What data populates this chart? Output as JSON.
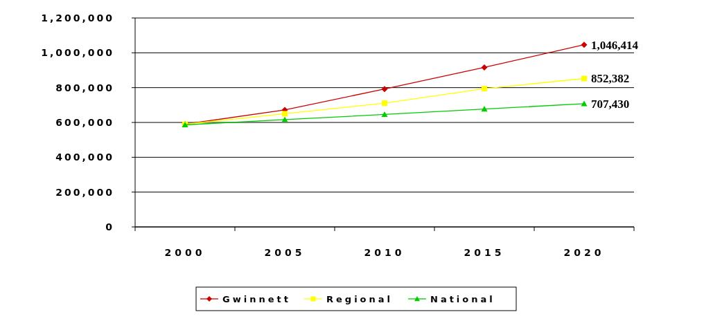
{
  "chart_data": {
    "type": "line",
    "categories": [
      "2000",
      "2005",
      "2010",
      "2015",
      "2020"
    ],
    "series": [
      {
        "name": "Gwinnett",
        "color": "#cc0000",
        "marker": "diamond",
        "values": [
          590000,
          672000,
          792000,
          916000,
          1046414
        ],
        "value_labels": [
          null,
          null,
          null,
          null,
          "1,046,414"
        ]
      },
      {
        "name": "Regional",
        "color": "#ffff00",
        "marker": "square",
        "values": [
          590000,
          650000,
          711000,
          794000,
          852382
        ],
        "value_labels": [
          null,
          null,
          null,
          null,
          "852,382"
        ]
      },
      {
        "name": "National",
        "color": "#00cc00",
        "marker": "triangle",
        "values": [
          586000,
          616000,
          646000,
          677000,
          707430
        ],
        "value_labels": [
          null,
          null,
          null,
          null,
          "707,430"
        ]
      }
    ],
    "ylim": [
      0,
      1200000
    ],
    "yticks": [
      {
        "value": 0,
        "label": "0"
      },
      {
        "value": 200000,
        "label": "200,000"
      },
      {
        "value": 400000,
        "label": "400,000"
      },
      {
        "value": 600000,
        "label": "600,000"
      },
      {
        "value": 800000,
        "label": "800,000"
      },
      {
        "value": 1000000,
        "label": "1,000,000"
      },
      {
        "value": 1200000,
        "label": "1,200,000"
      }
    ],
    "grid": "y",
    "legend": "bottom"
  }
}
